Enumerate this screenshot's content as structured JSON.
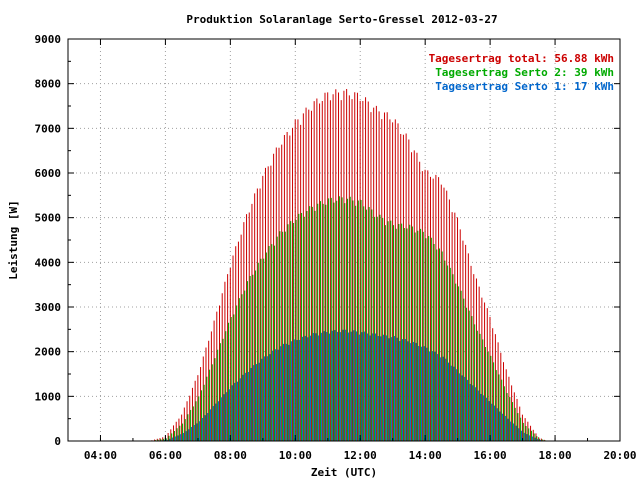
{
  "chart_data": {
    "type": "bar",
    "title": "Produktion Solaranlage Serto-Gressel 2012-03-27",
    "xlabel": "Zeit (UTC)",
    "ylabel": "Leistung [W]",
    "xlim": [
      3,
      20
    ],
    "ylim": [
      0,
      9000
    ],
    "x_ticks": [
      "04:00",
      "06:00",
      "08:00",
      "10:00",
      "12:00",
      "14:00",
      "16:00",
      "18:00",
      "20:00"
    ],
    "y_ticks": [
      "0",
      "1000",
      "2000",
      "3000",
      "4000",
      "5000",
      "6000",
      "7000",
      "8000",
      "9000"
    ],
    "grid": true,
    "legend_position": "top-right",
    "legend": [
      {
        "label": "Tagesertrag total: 56.88 kWh",
        "color": "#cc0000"
      },
      {
        "label": "Tagesertrag Serto 2: 39 kWh",
        "color": "#00aa00"
      },
      {
        "label": "Tagesertrag Serto 1: 17 kWh",
        "color": "#0066cc"
      }
    ],
    "bar_interval_hours": 0.0833,
    "series": [
      {
        "name": "Tagesertrag total: 56.88 kWh",
        "color": "#cc0000",
        "x": [
          5.5,
          6.0,
          6.5,
          7.0,
          7.5,
          8.0,
          8.5,
          9.0,
          9.5,
          10.0,
          10.5,
          11.0,
          11.5,
          12.0,
          12.5,
          13.0,
          13.5,
          14.0,
          14.5,
          15.0,
          15.5,
          16.0,
          16.5,
          17.0,
          17.5,
          17.75
        ],
        "y": [
          0,
          100,
          600,
          1500,
          2700,
          4000,
          5100,
          6000,
          6700,
          7200,
          7600,
          7850,
          7900,
          7800,
          7500,
          7300,
          6800,
          6100,
          5900,
          5000,
          3800,
          2800,
          1600,
          600,
          80,
          0
        ]
      },
      {
        "name": "Tagesertrag Serto 2: 39 kWh",
        "color": "#00aa00",
        "x": [
          5.5,
          6.0,
          6.5,
          7.0,
          7.5,
          8.0,
          8.5,
          9.0,
          9.5,
          10.0,
          10.5,
          11.0,
          11.5,
          12.0,
          12.5,
          13.0,
          13.5,
          14.0,
          14.5,
          15.0,
          15.5,
          16.0,
          16.5,
          17.0,
          17.5,
          17.75
        ],
        "y": [
          0,
          60,
          400,
          1000,
          1900,
          2800,
          3600,
          4200,
          4700,
          5050,
          5300,
          5450,
          5500,
          5400,
          5100,
          4900,
          4850,
          4700,
          4250,
          3500,
          2650,
          1900,
          1100,
          400,
          50,
          0
        ]
      },
      {
        "name": "Tagesertrag Serto 1: 17 kWh",
        "color": "#0066cc",
        "x": [
          5.5,
          6.0,
          6.5,
          7.0,
          7.5,
          8.0,
          8.5,
          9.0,
          9.5,
          10.0,
          10.5,
          11.0,
          11.5,
          12.0,
          12.5,
          13.0,
          13.5,
          14.0,
          14.5,
          15.0,
          15.5,
          16.0,
          16.5,
          17.0,
          17.5,
          17.75
        ],
        "y": [
          0,
          25,
          180,
          450,
          850,
          1250,
          1600,
          1900,
          2150,
          2300,
          2420,
          2480,
          2500,
          2460,
          2400,
          2350,
          2250,
          2100,
          1900,
          1550,
          1200,
          850,
          500,
          180,
          20,
          0
        ]
      }
    ]
  }
}
